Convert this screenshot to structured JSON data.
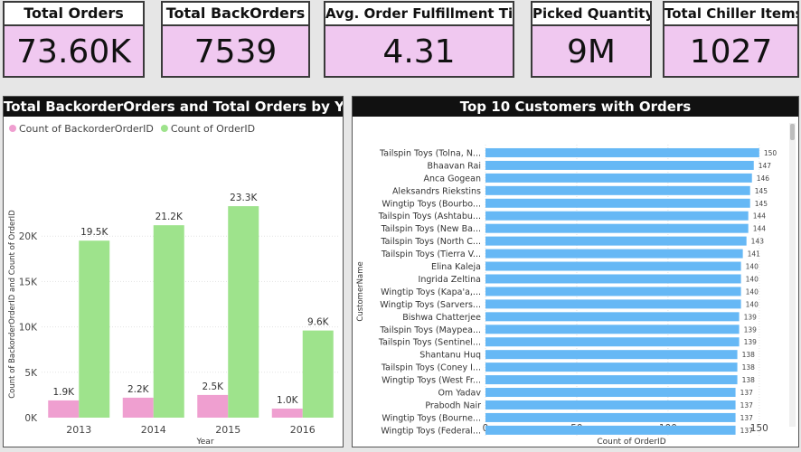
{
  "kpis": [
    {
      "title": "Total Orders",
      "value": "73.60K"
    },
    {
      "title": "Total BackOrders",
      "value": "7539"
    },
    {
      "title": "Avg. Order Fulfillment Time",
      "value": "4.31"
    },
    {
      "title": "Picked Quantity",
      "value": "9M"
    },
    {
      "title": "Total Chiller Items",
      "value": "1027"
    }
  ],
  "colors": {
    "backorder": "#ef9fd0",
    "orders": "#9ee38c",
    "customers": "#66b8f5"
  },
  "chart_data": [
    {
      "type": "bar",
      "title": "Total BackorderOrders and Total Orders by Year",
      "xlabel": "Year",
      "ylabel": "Count of BackorderOrderID and Count of OrderID",
      "categories": [
        "2013",
        "2014",
        "2015",
        "2016"
      ],
      "series": [
        {
          "name": "Count of BackorderOrderID",
          "values": [
            1900,
            2200,
            2500,
            1000
          ],
          "labels": [
            "1.9K",
            "2.2K",
            "2.5K",
            "1.0K"
          ]
        },
        {
          "name": "Count of OrderID",
          "values": [
            19500,
            21200,
            23300,
            9600
          ],
          "labels": [
            "19.5K",
            "21.2K",
            "23.3K",
            "9.6K"
          ]
        }
      ],
      "ylim": [
        0,
        25000
      ],
      "yticks": [
        0,
        5000,
        10000,
        15000,
        20000
      ],
      "ytick_labels": [
        "0K",
        "5K",
        "10K",
        "15K",
        "20K"
      ],
      "legend": "top-left"
    },
    {
      "type": "bar",
      "orientation": "horizontal",
      "title": "Top 10 Customers with Orders",
      "xlabel": "Count of OrderID",
      "ylabel": "CustomerName",
      "categories": [
        "Tailspin Toys (Tolna, N...",
        "Bhaavan Rai",
        "Anca Gogean",
        "Aleksandrs Riekstins",
        "Wingtip Toys (Bourbo...",
        "Tailspin Toys (Ashtabu...",
        "Tailspin Toys (New Ba...",
        "Tailspin Toys (North C...",
        "Tailspin Toys (Tierra V...",
        "Elina Kaleja",
        "Ingrida Zeltina",
        "Wingtip Toys (Kapa'a,...",
        "Wingtip Toys (Sarvers...",
        "Bishwa Chatterjee",
        "Tailspin Toys (Maypea...",
        "Tailspin Toys (Sentinel...",
        "Shantanu Huq",
        "Tailspin Toys (Coney I...",
        "Wingtip Toys (West Fr...",
        "Om Yadav",
        "Prabodh Nair",
        "Wingtip Toys (Bourne...",
        "Wingtip Toys (Federal..."
      ],
      "values": [
        150,
        147,
        146,
        145,
        145,
        144,
        144,
        143,
        141,
        140,
        140,
        140,
        140,
        139,
        139,
        139,
        138,
        138,
        138,
        137,
        137,
        137,
        137
      ],
      "xlim": [
        0,
        160
      ],
      "xticks": [
        0,
        50,
        100,
        150
      ]
    }
  ]
}
